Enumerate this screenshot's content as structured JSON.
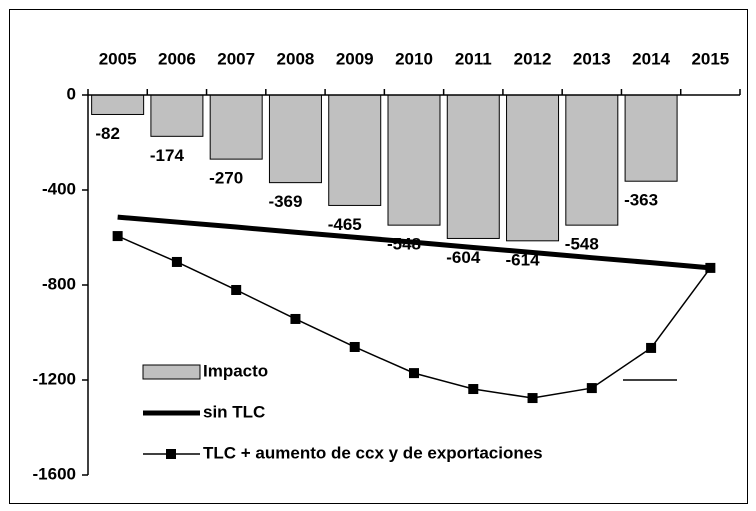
{
  "chart_data": {
    "type": "bar",
    "categories": [
      "2005",
      "2006",
      "2007",
      "2008",
      "2009",
      "2010",
      "2011",
      "2012",
      "2013",
      "2014",
      "2015"
    ],
    "series": [
      {
        "name": "Impacto",
        "type": "bar",
        "color": "#c0c0c0",
        "values": [
          -82,
          -174,
          -270,
          -369,
          -465,
          -548,
          -604,
          -614,
          -548,
          -363,
          null
        ]
      },
      {
        "name": "sin TLC",
        "type": "line",
        "color": "#000000",
        "values": [
          -514,
          -535,
          -556,
          -578,
          -599,
          -620,
          -642,
          -663,
          -685,
          -706,
          -728
        ]
      },
      {
        "name": "TLC + aumento de ccx y de exportaciones",
        "type": "line-marker",
        "color": "#000000",
        "values": [
          -594,
          -703,
          -821,
          -943,
          -1061,
          -1171,
          -1238,
          -1276,
          -1234,
          -1065,
          -728
        ]
      }
    ],
    "ylim": [
      -1600,
      0
    ],
    "yticks": [
      0,
      -400,
      -800,
      -1200,
      -1600
    ],
    "grid": false,
    "legend": "bottom-left"
  }
}
